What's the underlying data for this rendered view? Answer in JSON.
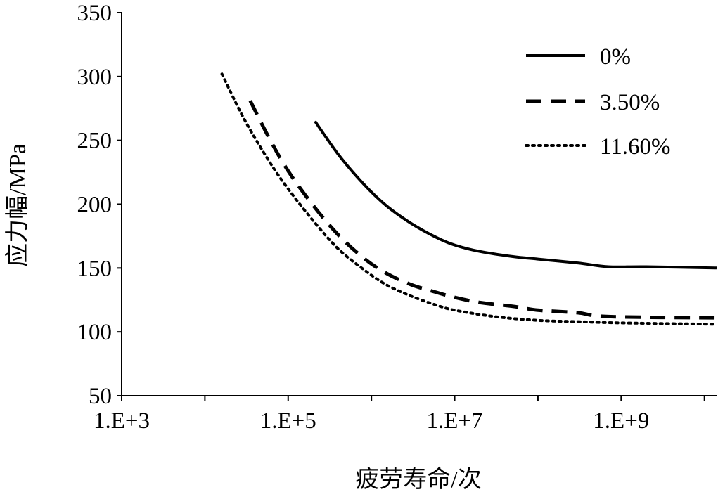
{
  "chart_data": {
    "type": "line",
    "title": "",
    "xlabel": "疲劳寿命/次",
    "ylabel": "应力幅/MPa",
    "x_scale": "log",
    "xlim": [
      1000,
      14000000000
    ],
    "ylim": [
      50,
      350
    ],
    "x_ticks": [
      1000,
      100000,
      10000000,
      1000000000
    ],
    "x_tick_labels": [
      "1.E+3",
      "1.E+5",
      "1.E+7",
      "1.E+9"
    ],
    "x_minor_ticks": [
      10000,
      1000000,
      100000000,
      10000000000
    ],
    "y_ticks": [
      50,
      100,
      150,
      200,
      250,
      300,
      350
    ],
    "y_tick_labels": [
      "50",
      "100",
      "150",
      "200",
      "250",
      "300",
      "350"
    ],
    "grid": false,
    "legend_position": "top-right",
    "series": [
      {
        "name": "0%",
        "line_style": "solid",
        "color": "#000000",
        "x": [
          210000,
          400000,
          800000,
          1500000,
          3000000,
          6000000,
          10000000,
          20000000,
          50000000,
          100000000,
          300000000,
          700000000,
          2000000000,
          14000000000
        ],
        "y": [
          265,
          239,
          216,
          199,
          185,
          174,
          168,
          163,
          159,
          157,
          154,
          151,
          151,
          150
        ]
      },
      {
        "name": "3.50%",
        "line_style": "dashed",
        "color": "#000000",
        "x": [
          35000,
          60000,
          100000,
          200000,
          400000,
          800000,
          1500000,
          3000000,
          6000000,
          10000000,
          20000000,
          50000000,
          100000000,
          300000000,
          700000000,
          14000000000
        ],
        "y": [
          281,
          251,
          226,
          199,
          176,
          158,
          146,
          137,
          131,
          127,
          123,
          120,
          117,
          115,
          112,
          111
        ]
      },
      {
        "name": "11.60%",
        "line_style": "dotted",
        "color": "#000000",
        "x": [
          16000,
          30000,
          60000,
          100000,
          200000,
          400000,
          800000,
          1500000,
          3000000,
          6000000,
          10000000,
          30000000,
          100000000,
          300000000,
          1000000000,
          14000000000
        ],
        "y": [
          302,
          266,
          233,
          212,
          187,
          165,
          149,
          137,
          128,
          121,
          117,
          112,
          109,
          108,
          107,
          106
        ]
      }
    ]
  }
}
